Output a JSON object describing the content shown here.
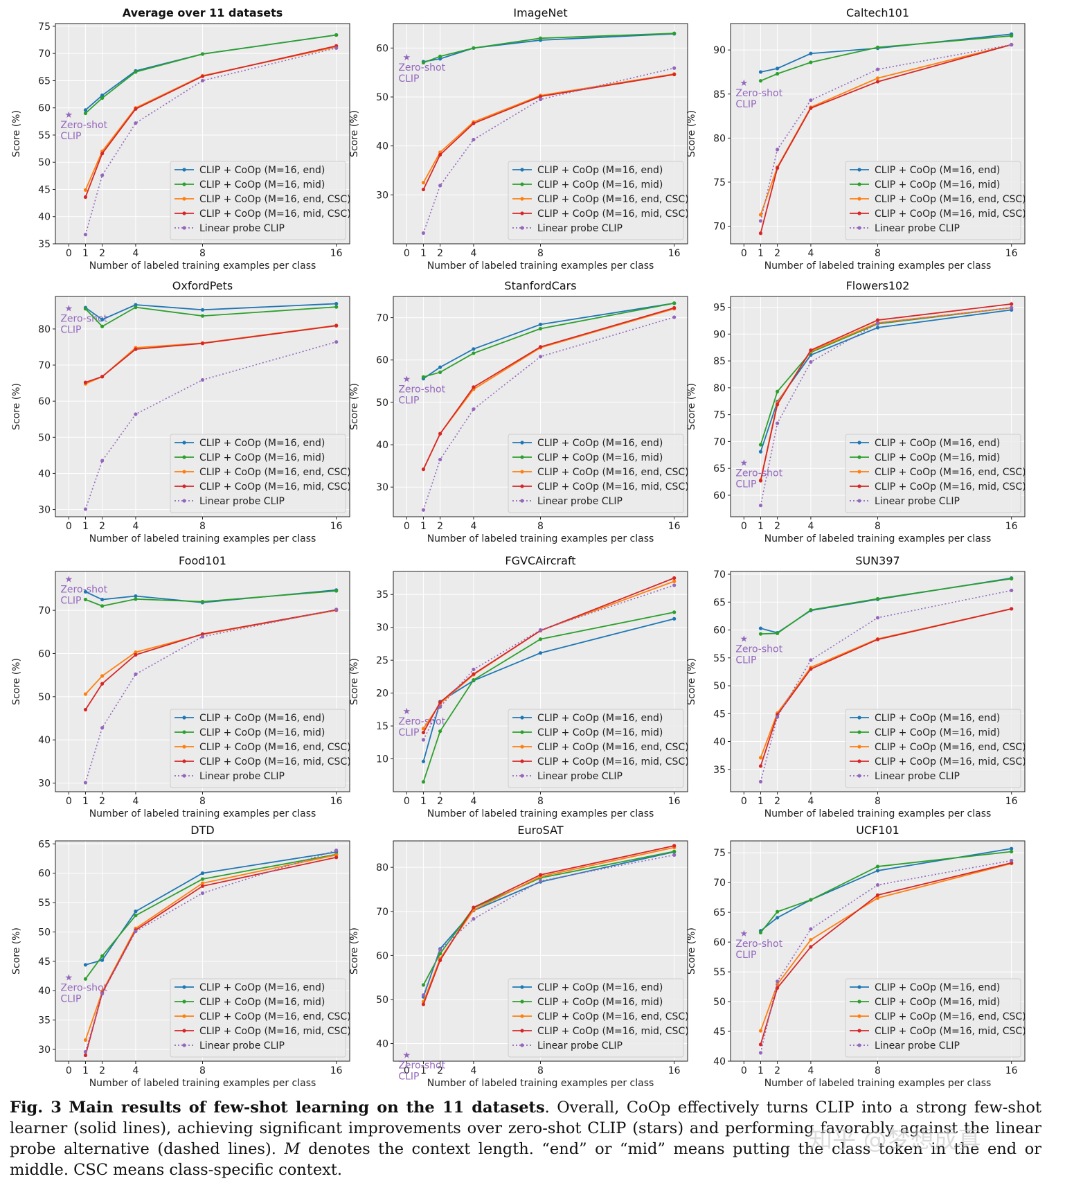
{
  "legend": {
    "entries": [
      "CLIP + CoOp (M=16, end)",
      "CLIP + CoOp (M=16, mid)",
      "CLIP + CoOp (M=16, end, CSC)",
      "CLIP + CoOp (M=16, mid, CSC)",
      "Linear probe CLIP"
    ],
    "colors": [
      "#1f77b4",
      "#2ca02c",
      "#ff7f0e",
      "#d62728",
      "#9467bd"
    ]
  },
  "zero_shot_label": [
    "Zero-shot",
    "CLIP"
  ],
  "chart_data": [
    {
      "type": "line",
      "title": "Average over 11 datasets",
      "title_bold": true,
      "xlabel": "Number of labeled training examples per class",
      "ylabel": "Score (%)",
      "x": [
        1,
        2,
        4,
        8,
        16
      ],
      "xticks": [
        0,
        1,
        2,
        4,
        8,
        16
      ],
      "ylim": [
        35,
        75.5
      ],
      "yticks": [
        35,
        40,
        45,
        50,
        55,
        60,
        65,
        70,
        75
      ],
      "legend_loc": "lower-right",
      "zero_shot": 58.8,
      "series": [
        {
          "name": "CLIP + CoOp (M=16, end)",
          "values": [
            59.6,
            62.3,
            66.8,
            69.9,
            73.4
          ]
        },
        {
          "name": "CLIP + CoOp (M=16, mid)",
          "values": [
            59.0,
            61.8,
            66.6,
            69.9,
            73.4
          ]
        },
        {
          "name": "CLIP + CoOp (M=16, end, CSC)",
          "values": [
            44.9,
            52.0,
            60.0,
            65.9,
            71.2
          ]
        },
        {
          "name": "CLIP + CoOp (M=16, mid, CSC)",
          "values": [
            43.6,
            51.6,
            59.8,
            65.8,
            71.4
          ]
        },
        {
          "name": "Linear probe CLIP",
          "values": [
            36.7,
            47.6,
            57.2,
            65.0,
            71.0
          ]
        }
      ]
    },
    {
      "type": "line",
      "title": "ImageNet",
      "title_bold": false,
      "xlabel": "Number of labeled training examples per class",
      "ylabel": "Score (%)",
      "x": [
        1,
        2,
        4,
        8,
        16
      ],
      "xticks": [
        0,
        1,
        2,
        4,
        8,
        16
      ],
      "ylim": [
        20,
        65
      ],
      "yticks": [
        30,
        40,
        50,
        60
      ],
      "legend_loc": "lower-right",
      "zero_shot": 58.2,
      "series": [
        {
          "name": "CLIP + CoOp (M=16, end)",
          "values": [
            57.2,
            57.8,
            60.0,
            61.6,
            62.9
          ]
        },
        {
          "name": "CLIP + CoOp (M=16, mid)",
          "values": [
            57.0,
            58.3,
            60.0,
            62.0,
            63.0
          ]
        },
        {
          "name": "CLIP + CoOp (M=16, end, CSC)",
          "values": [
            32.5,
            38.7,
            44.9,
            50.3,
            54.7
          ]
        },
        {
          "name": "CLIP + CoOp (M=16, mid, CSC)",
          "values": [
            31.1,
            38.2,
            44.6,
            50.1,
            54.6
          ]
        },
        {
          "name": "Linear probe CLIP",
          "values": [
            22.2,
            31.9,
            41.3,
            49.5,
            55.9
          ]
        }
      ]
    },
    {
      "type": "line",
      "title": "Caltech101",
      "title_bold": false,
      "xlabel": "Number of labeled training examples per class",
      "ylabel": "Score (%)",
      "x": [
        1,
        2,
        4,
        8,
        16
      ],
      "xticks": [
        0,
        1,
        2,
        4,
        8,
        16
      ],
      "ylim": [
        68,
        93
      ],
      "yticks": [
        70,
        75,
        80,
        85,
        90
      ],
      "legend_loc": "lower-right",
      "zero_shot": 86.3,
      "series": [
        {
          "name": "CLIP + CoOp (M=16, end)",
          "values": [
            87.5,
            87.9,
            89.6,
            90.2,
            91.8
          ]
        },
        {
          "name": "CLIP + CoOp (M=16, mid)",
          "values": [
            86.5,
            87.3,
            88.6,
            90.3,
            91.6
          ]
        },
        {
          "name": "CLIP + CoOp (M=16, end, CSC)",
          "values": [
            71.3,
            76.7,
            83.5,
            86.8,
            90.6
          ]
        },
        {
          "name": "CLIP + CoOp (M=16, mid, CSC)",
          "values": [
            69.2,
            76.6,
            83.4,
            86.4,
            90.6
          ]
        },
        {
          "name": "Linear probe CLIP",
          "values": [
            70.6,
            78.7,
            84.3,
            87.8,
            90.6
          ]
        }
      ]
    },
    {
      "type": "line",
      "title": "OxfordPets",
      "title_bold": false,
      "xlabel": "Number of labeled training examples per class",
      "ylabel": "Score (%)",
      "x": [
        1,
        2,
        4,
        8,
        16
      ],
      "xticks": [
        0,
        1,
        2,
        4,
        8,
        16
      ],
      "ylim": [
        28,
        89
      ],
      "yticks": [
        30,
        40,
        50,
        60,
        70,
        80
      ],
      "legend_loc": "lower-right",
      "zero_shot": 85.8,
      "series": [
        {
          "name": "CLIP + CoOp (M=16, end)",
          "values": [
            85.9,
            82.6,
            86.7,
            85.3,
            87.0
          ]
        },
        {
          "name": "CLIP + CoOp (M=16, mid)",
          "values": [
            85.6,
            80.7,
            86.0,
            83.6,
            86.1
          ]
        },
        {
          "name": "CLIP + CoOp (M=16, end, CSC)",
          "values": [
            64.8,
            66.8,
            74.8,
            76.1,
            81.0
          ]
        },
        {
          "name": "CLIP + CoOp (M=16, mid, CSC)",
          "values": [
            65.2,
            66.8,
            74.4,
            76.0,
            80.9
          ]
        },
        {
          "name": "Linear probe CLIP",
          "values": [
            30.1,
            43.5,
            56.4,
            65.9,
            76.4
          ]
        }
      ]
    },
    {
      "type": "line",
      "title": "StanfordCars",
      "title_bold": false,
      "xlabel": "Number of labeled training examples per class",
      "ylabel": "Score (%)",
      "x": [
        1,
        2,
        4,
        8,
        16
      ],
      "xticks": [
        0,
        1,
        2,
        4,
        8,
        16
      ],
      "ylim": [
        23,
        75
      ],
      "yticks": [
        30,
        40,
        50,
        60,
        70
      ],
      "legend_loc": "lower-right",
      "zero_shot": 55.6,
      "series": [
        {
          "name": "CLIP + CoOp (M=16, end)",
          "values": [
            55.6,
            58.3,
            62.6,
            68.4,
            73.4
          ]
        },
        {
          "name": "CLIP + CoOp (M=16, mid)",
          "values": [
            56.0,
            57.1,
            61.6,
            67.4,
            73.4
          ]
        },
        {
          "name": "CLIP + CoOp (M=16, end, CSC)",
          "values": [
            34.2,
            42.6,
            53.1,
            62.9,
            72.1
          ]
        },
        {
          "name": "CLIP + CoOp (M=16, mid, CSC)",
          "values": [
            34.2,
            42.6,
            53.6,
            63.1,
            72.3
          ]
        },
        {
          "name": "Linear probe CLIP",
          "values": [
            24.6,
            36.5,
            48.4,
            60.8,
            70.1
          ]
        }
      ]
    },
    {
      "type": "line",
      "title": "Flowers102",
      "title_bold": false,
      "xlabel": "Number of labeled training examples per class",
      "ylabel": "Score (%)",
      "x": [
        1,
        2,
        4,
        8,
        16
      ],
      "xticks": [
        0,
        1,
        2,
        4,
        8,
        16
      ],
      "ylim": [
        56,
        97
      ],
      "yticks": [
        60,
        65,
        70,
        75,
        80,
        85,
        90,
        95
      ],
      "legend_loc": "lower-right",
      "zero_shot": 66.1,
      "series": [
        {
          "name": "CLIP + CoOp (M=16, end)",
          "values": [
            68.1,
            77.4,
            86.1,
            91.2,
            94.5
          ]
        },
        {
          "name": "CLIP + CoOp (M=16, mid)",
          "values": [
            69.4,
            79.3,
            86.6,
            91.9,
            94.9
          ]
        },
        {
          "name": "CLIP + CoOp (M=16, end, CSC)",
          "values": [
            62.8,
            77.2,
            86.8,
            92.1,
            94.9
          ]
        },
        {
          "name": "CLIP + CoOp (M=16, mid, CSC)",
          "values": [
            62.7,
            76.9,
            87.0,
            92.6,
            95.6
          ]
        },
        {
          "name": "Linear probe CLIP",
          "values": [
            58.1,
            73.4,
            84.8,
            92.0,
            94.9
          ]
        }
      ]
    },
    {
      "type": "line",
      "title": "Food101",
      "title_bold": false,
      "xlabel": "Number of labeled training examples per class",
      "ylabel": "Score (%)",
      "x": [
        1,
        2,
        4,
        8,
        16
      ],
      "xticks": [
        0,
        1,
        2,
        4,
        8,
        16
      ],
      "ylim": [
        28,
        79
      ],
      "yticks": [
        30,
        40,
        50,
        60,
        70
      ],
      "legend_loc": "lower-right",
      "zero_shot": 77.3,
      "series": [
        {
          "name": "CLIP + CoOp (M=16, end)",
          "values": [
            74.3,
            72.5,
            73.3,
            71.8,
            74.7
          ]
        },
        {
          "name": "CLIP + CoOp (M=16, mid)",
          "values": [
            72.5,
            71.0,
            72.6,
            72.0,
            74.5
          ]
        },
        {
          "name": "CLIP + CoOp (M=16, end, CSC)",
          "values": [
            50.6,
            54.8,
            60.3,
            64.4,
            70.0
          ]
        },
        {
          "name": "CLIP + CoOp (M=16, mid, CSC)",
          "values": [
            47.0,
            53.0,
            59.7,
            64.5,
            70.1
          ]
        },
        {
          "name": "Linear probe CLIP",
          "values": [
            30.1,
            42.8,
            55.2,
            63.9,
            70.2
          ]
        }
      ]
    },
    {
      "type": "line",
      "title": "FGVCAircraft",
      "title_bold": false,
      "xlabel": "Number of labeled training examples per class",
      "ylabel": "Score (%)",
      "x": [
        1,
        2,
        4,
        8,
        16
      ],
      "xticks": [
        0,
        1,
        2,
        4,
        8,
        16
      ],
      "ylim": [
        5,
        38.5
      ],
      "yticks": [
        10,
        15,
        20,
        25,
        30,
        35
      ],
      "legend_loc": "lower-right",
      "zero_shot": 17.3,
      "series": [
        {
          "name": "CLIP + CoOp (M=16, end)",
          "values": [
            9.6,
            18.7,
            21.9,
            26.1,
            31.3
          ]
        },
        {
          "name": "CLIP + CoOp (M=16, mid)",
          "values": [
            6.5,
            14.2,
            22.0,
            28.2,
            32.3
          ]
        },
        {
          "name": "CLIP + CoOp (M=16, end, CSC)",
          "values": [
            14.6,
            18.4,
            22.8,
            29.5,
            37.0
          ]
        },
        {
          "name": "CLIP + CoOp (M=16, mid, CSC)",
          "values": [
            14.0,
            18.6,
            22.9,
            29.5,
            37.5
          ]
        },
        {
          "name": "Linear probe CLIP",
          "values": [
            12.9,
            17.9,
            23.6,
            29.6,
            36.4
          ]
        }
      ]
    },
    {
      "type": "line",
      "title": "SUN397",
      "title_bold": false,
      "xlabel": "Number of labeled training examples per class",
      "ylabel": "Score (%)",
      "x": [
        1,
        2,
        4,
        8,
        16
      ],
      "xticks": [
        0,
        1,
        2,
        4,
        8,
        16
      ],
      "ylim": [
        31,
        70.5
      ],
      "yticks": [
        35,
        40,
        45,
        50,
        55,
        60,
        65,
        70
      ],
      "legend_loc": "lower-right",
      "zero_shot": 58.5,
      "series": [
        {
          "name": "CLIP + CoOp (M=16, end)",
          "values": [
            60.3,
            59.5,
            63.5,
            65.5,
            69.3
          ]
        },
        {
          "name": "CLIP + CoOp (M=16, mid)",
          "values": [
            59.3,
            59.4,
            63.6,
            65.6,
            69.2
          ]
        },
        {
          "name": "CLIP + CoOp (M=16, end, CSC)",
          "values": [
            37.1,
            45.1,
            53.3,
            58.4,
            63.8
          ]
        },
        {
          "name": "CLIP + CoOp (M=16, mid, CSC)",
          "values": [
            35.6,
            44.8,
            53.0,
            58.3,
            63.8
          ]
        },
        {
          "name": "Linear probe CLIP",
          "values": [
            32.8,
            44.4,
            54.6,
            62.2,
            67.1
          ]
        }
      ]
    },
    {
      "type": "line",
      "title": "DTD",
      "title_bold": false,
      "xlabel": "Number of labeled training examples per class",
      "ylabel": "Score (%)",
      "x": [
        1,
        2,
        4,
        8,
        16
      ],
      "xticks": [
        0,
        1,
        2,
        4,
        8,
        16
      ],
      "ylim": [
        28,
        65.5
      ],
      "yticks": [
        30,
        35,
        40,
        45,
        50,
        55,
        60,
        65
      ],
      "legend_loc": "lower-right",
      "zero_shot": 42.3,
      "series": [
        {
          "name": "CLIP + CoOp (M=16, end)",
          "values": [
            44.4,
            45.2,
            53.5,
            60.0,
            63.6
          ]
        },
        {
          "name": "CLIP + CoOp (M=16, mid)",
          "values": [
            42.0,
            45.9,
            52.8,
            59.0,
            63.2
          ]
        },
        {
          "name": "CLIP + CoOp (M=16, end, CSC)",
          "values": [
            31.6,
            39.8,
            50.6,
            58.3,
            63.1
          ]
        },
        {
          "name": "CLIP + CoOp (M=16, mid, CSC)",
          "values": [
            29.0,
            39.6,
            50.3,
            57.8,
            62.7
          ]
        },
        {
          "name": "Linear probe CLIP",
          "values": [
            29.6,
            39.5,
            50.1,
            56.6,
            63.9
          ]
        }
      ]
    },
    {
      "type": "line",
      "title": "EuroSAT",
      "title_bold": false,
      "xlabel": "Number of labeled training examples per class",
      "ylabel": "Score (%)",
      "x": [
        1,
        2,
        4,
        8,
        16
      ],
      "xticks": [
        0,
        1,
        2,
        4,
        8,
        16
      ],
      "ylim": [
        36,
        86
      ],
      "yticks": [
        40,
        50,
        60,
        70,
        80
      ],
      "legend_loc": "lower-right",
      "zero_shot": 37.5,
      "series": [
        {
          "name": "CLIP + CoOp (M=16, end)",
          "values": [
            50.6,
            61.5,
            70.2,
            76.7,
            83.5
          ]
        },
        {
          "name": "CLIP + CoOp (M=16, mid)",
          "values": [
            53.3,
            60.4,
            70.8,
            77.6,
            83.6
          ]
        },
        {
          "name": "CLIP + CoOp (M=16, end, CSC)",
          "values": [
            49.5,
            59.3,
            70.3,
            77.9,
            84.5
          ]
        },
        {
          "name": "CLIP + CoOp (M=16, mid, CSC)",
          "values": [
            48.9,
            58.9,
            70.9,
            78.3,
            84.9
          ]
        },
        {
          "name": "Linear probe CLIP",
          "values": [
            51.0,
            61.3,
            68.3,
            76.9,
            82.8
          ]
        }
      ]
    },
    {
      "type": "line",
      "title": "UCF101",
      "title_bold": false,
      "xlabel": "Number of labeled training examples per class",
      "ylabel": "Score (%)",
      "x": [
        1,
        2,
        4,
        8,
        16
      ],
      "xticks": [
        0,
        1,
        2,
        4,
        8,
        16
      ],
      "ylim": [
        40,
        77
      ],
      "yticks": [
        40,
        45,
        50,
        55,
        60,
        65,
        70,
        75
      ],
      "legend_loc": "lower-right",
      "zero_shot": 61.5,
      "series": [
        {
          "name": "CLIP + CoOp (M=16, end)",
          "values": [
            61.9,
            64.1,
            67.1,
            72.0,
            75.7
          ]
        },
        {
          "name": "CLIP + CoOp (M=16, mid)",
          "values": [
            61.6,
            65.1,
            67.1,
            72.7,
            75.2
          ]
        },
        {
          "name": "CLIP + CoOp (M=16, end, CSC)",
          "values": [
            45.1,
            52.9,
            60.4,
            67.4,
            73.2
          ]
        },
        {
          "name": "CLIP + CoOp (M=16, mid, CSC)",
          "values": [
            42.8,
            52.3,
            59.2,
            67.9,
            73.3
          ]
        },
        {
          "name": "Linear probe CLIP",
          "values": [
            41.4,
            53.4,
            62.2,
            69.6,
            73.7
          ]
        }
      ]
    }
  ],
  "caption": {
    "fig_label": "Fig. 3",
    "bold_title": "Main results of few-shot learning on the 11 datasets",
    "text1": ". Overall, CoOp effectively turns CLIP into a strong few-shot learner (solid lines), achieving significant improvements over zero-shot CLIP (stars) and performing favorably against the linear probe alternative (dashed lines). ",
    "math_m": "M",
    "text2": " denotes the context length. “end” or “mid” means putting the class token in the end or middle. CSC means class-specific context."
  },
  "watermark": "知乎 @梦想成真"
}
